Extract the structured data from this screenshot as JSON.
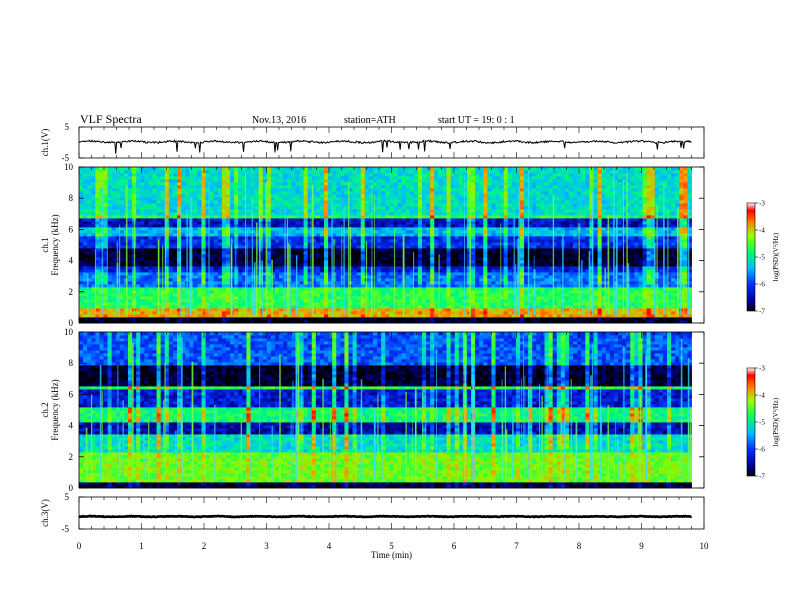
{
  "header": {
    "title": "VLF  Spectra",
    "date": "Nov.13, 2016",
    "station": "station=ATH",
    "start": "start  UT  =    19: 0  : 1"
  },
  "chart_data": [
    {
      "type": "line",
      "name": "ch1-waveform",
      "ylabel": "ch.1(V)",
      "ylim": [
        -5,
        5
      ],
      "yticks": [
        "5",
        "-5"
      ],
      "xlim": [
        0,
        10
      ],
      "x_end": 9.8,
      "mean": 0.2,
      "fluct": 0.6
    },
    {
      "type": "heatmap",
      "name": "ch1-spectrogram",
      "ylabel_channel": "ch.1",
      "ylabel": "Frequency  (kHz)",
      "ylim": [
        0,
        10
      ],
      "yticks": [
        "0",
        "2",
        "4",
        "6",
        "8",
        "10"
      ],
      "xlim": [
        0,
        10
      ],
      "x_end": 9.8,
      "colorbar": {
        "label": "log(PSD)(V²/Hz)",
        "range": [
          -7,
          -3
        ],
        "ticks": [
          "-3",
          "-4",
          "-5",
          "-6",
          "-7"
        ]
      },
      "bands": [
        {
          "f0": 0.0,
          "f1": 0.35,
          "level": -7
        },
        {
          "f0": 0.35,
          "f1": 0.9,
          "level": -4.2
        },
        {
          "f0": 0.9,
          "f1": 2.4,
          "level": -5.0
        },
        {
          "f0": 2.4,
          "f1": 3.3,
          "level": -5.9
        },
        {
          "f0": 3.3,
          "f1": 3.7,
          "level": -6.3
        },
        {
          "f0": 3.7,
          "f1": 4.9,
          "level": -6.9
        },
        {
          "f0": 4.9,
          "f1": 5.6,
          "level": -6.2
        },
        {
          "f0": 5.6,
          "f1": 6.1,
          "level": -5.6
        },
        {
          "f0": 6.1,
          "f1": 6.7,
          "level": -6.4
        },
        {
          "f0": 6.7,
          "f1": 7.0,
          "level": -5.0
        },
        {
          "f0": 7.0,
          "f1": 10.0,
          "level": -5.4
        }
      ]
    },
    {
      "type": "heatmap",
      "name": "ch2-spectrogram",
      "ylabel_channel": "ch.2",
      "ylabel": "Frequency  (kHz)",
      "ylim": [
        0,
        10
      ],
      "yticks": [
        "0",
        "2",
        "4",
        "6",
        "8",
        "10"
      ],
      "xlim": [
        0,
        10
      ],
      "x_end": 9.8,
      "colorbar": {
        "label": "log(PSD)(V²/Hz)",
        "range": [
          -7,
          -3
        ],
        "ticks": [
          "-3",
          "-4",
          "-5",
          "-6",
          "-7"
        ]
      },
      "bands": [
        {
          "f0": 0.0,
          "f1": 0.3,
          "level": -6.8
        },
        {
          "f0": 0.3,
          "f1": 2.4,
          "level": -4.7
        },
        {
          "f0": 2.4,
          "f1": 3.5,
          "level": -5.4
        },
        {
          "f0": 3.5,
          "f1": 4.3,
          "level": -6.5
        },
        {
          "f0": 4.3,
          "f1": 5.2,
          "level": -5.1
        },
        {
          "f0": 5.2,
          "f1": 6.3,
          "level": -6.3
        },
        {
          "f0": 6.3,
          "f1": 6.6,
          "level": -5.0
        },
        {
          "f0": 6.6,
          "f1": 7.8,
          "level": -6.9
        },
        {
          "f0": 7.8,
          "f1": 10.0,
          "level": -6.0
        }
      ]
    },
    {
      "type": "line",
      "name": "ch3-waveform",
      "ylabel": "ch.3(V)",
      "ylim": [
        -5,
        5
      ],
      "yticks": [
        "5",
        "-5"
      ],
      "xlim": [
        0,
        10
      ],
      "x_end": 9.8,
      "mean": -1.1,
      "fluct": 0.2,
      "xlabel": "Time  (min)",
      "xticks": [
        "0",
        "1",
        "2",
        "3",
        "4",
        "5",
        "6",
        "7",
        "8",
        "9",
        "10"
      ]
    }
  ]
}
